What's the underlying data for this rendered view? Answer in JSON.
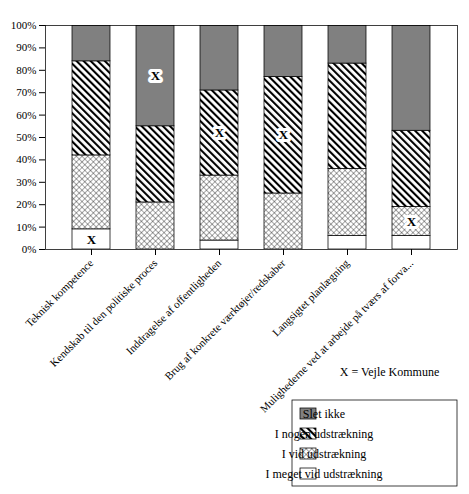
{
  "chart_data": {
    "type": "bar",
    "stacked": true,
    "categories": [
      "Teknisk kompetence",
      "Kendskab til den politiske proces",
      "Inddragelse af offentligheden",
      "Brug af konkrete værktøjer/redskaber",
      "Langsigtet planlægning",
      "Mulighederne ved at arbejde på tværs af forva..."
    ],
    "series": [
      {
        "name": "I meget vid udstrækning",
        "color": "#ffffff",
        "values": [
          9,
          0,
          4,
          0,
          6,
          6
        ]
      },
      {
        "name": "I vid udstrækning",
        "color": "#ffffff",
        "values": [
          33,
          21,
          29,
          25,
          30,
          13
        ]
      },
      {
        "name": "I nogen udstrækning",
        "color": "#ffffff",
        "values": [
          42,
          34,
          38,
          52,
          47,
          34
        ]
      },
      {
        "name": "Slet ikke",
        "color": "#808080",
        "values": [
          16,
          45,
          29,
          23,
          17,
          47
        ]
      }
    ],
    "ylim": [
      0,
      100
    ],
    "yticks": [
      {
        "value": 0,
        "label": "0%"
      },
      {
        "value": 10,
        "label": "10%"
      },
      {
        "value": 20,
        "label": "20%"
      },
      {
        "value": 30,
        "label": "30%"
      },
      {
        "value": 40,
        "label": "40%"
      },
      {
        "value": 50,
        "label": "50%"
      },
      {
        "value": 60,
        "label": "60%"
      },
      {
        "value": 70,
        "label": "70%"
      },
      {
        "value": 80,
        "label": "80%"
      },
      {
        "value": 90,
        "label": "90%"
      },
      {
        "value": 100,
        "label": "100%"
      }
    ],
    "legend": "bottom-right",
    "annotations": {
      "symbol": "X",
      "text": "X = Vejle Kommune",
      "series": [
        "I meget vid udstrækning",
        "Slet ikke",
        "I nogen udstrækning",
        "I nogen udstrækning",
        null,
        "I vid udstrækning"
      ]
    }
  }
}
